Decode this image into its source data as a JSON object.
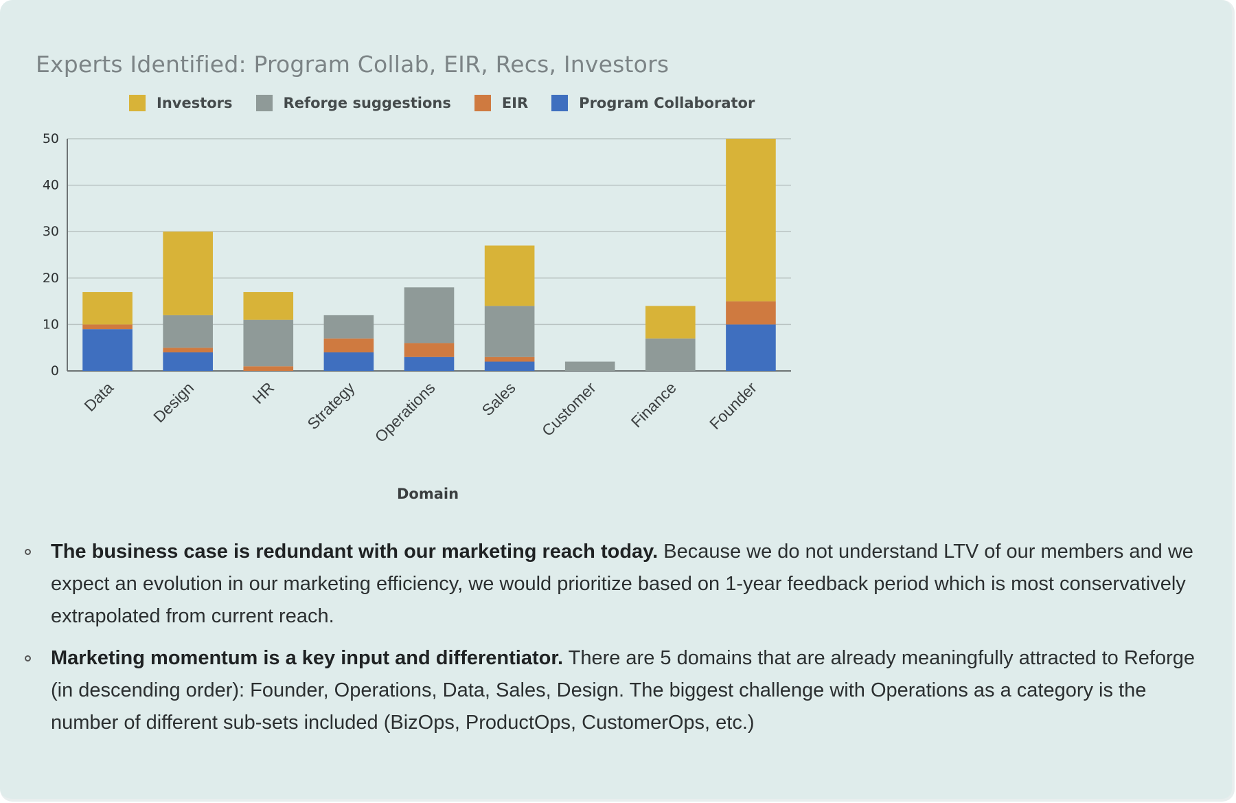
{
  "chart_data": {
    "type": "bar",
    "stacked": true,
    "title": "Experts Identified: Program Collab, EIR, Recs, Investors",
    "xlabel": "Domain",
    "ylabel": "",
    "ylim": [
      0,
      50
    ],
    "yticks": [
      0,
      10,
      20,
      30,
      40,
      50
    ],
    "grid": true,
    "legend_position": "top",
    "categories": [
      "Data",
      "Design",
      "HR",
      "Strategy",
      "Operations",
      "Sales",
      "Customer",
      "Finance",
      "Founder"
    ],
    "series": [
      {
        "name": "Program Collaborator",
        "color": "#3f6fbf",
        "values": [
          9,
          4,
          0,
          4,
          3,
          2,
          0,
          0,
          10
        ]
      },
      {
        "name": "EIR",
        "color": "#cf7a40",
        "values": [
          1,
          1,
          1,
          3,
          3,
          1,
          0,
          0,
          5
        ]
      },
      {
        "name": "Reforge suggestions",
        "color": "#8f9a98",
        "values": [
          0,
          7,
          10,
          5,
          12,
          11,
          2,
          7,
          0
        ]
      },
      {
        "name": "Investors",
        "color": "#d8b338",
        "values": [
          7,
          18,
          6,
          0,
          0,
          13,
          0,
          7,
          35
        ]
      }
    ],
    "legend_order": [
      "Investors",
      "Reforge suggestions",
      "EIR",
      "Program Collaborator"
    ]
  },
  "notes": [
    {
      "bold": "The business case is redundant with our marketing reach today.",
      "text": " Because we do not understand LTV of our members and we expect an evolution in our marketing efficiency, we would prioritize based on 1-year feedback period which is most conservatively extrapolated from current reach."
    },
    {
      "bold": "Marketing momentum is a key input and differentiator.",
      "text": " There are 5 domains that are already meaningfully attracted to Reforge (in descending order): Founder, Operations, Data, Sales, Design. The biggest challenge with Operations as a category is the number of different sub-sets included (BizOps, ProductOps, CustomerOps, etc.)"
    }
  ]
}
